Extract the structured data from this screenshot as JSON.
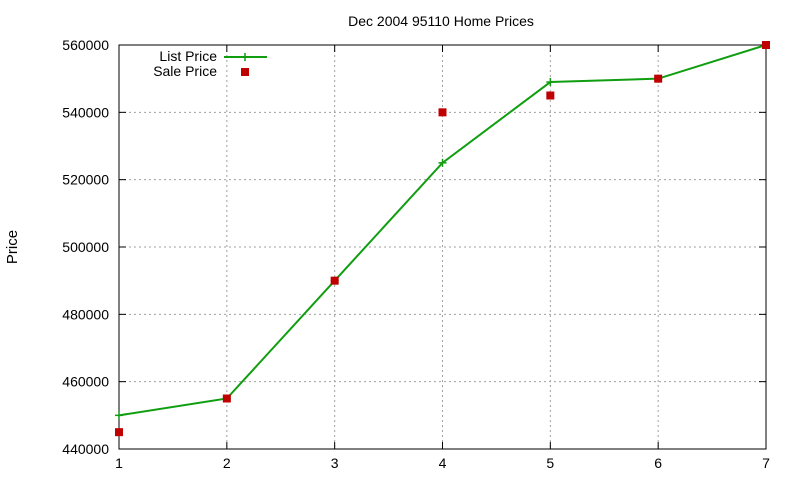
{
  "chart_data": {
    "type": "line",
    "title": "Dec 2004 95110 Home Prices",
    "xlabel": "",
    "ylabel": "Price",
    "x": [
      1,
      2,
      3,
      4,
      5,
      6,
      7
    ],
    "xlim": [
      1,
      7
    ],
    "ylim": [
      440000,
      560000
    ],
    "xticks": [
      1,
      2,
      3,
      4,
      5,
      6,
      7
    ],
    "yticks": [
      440000,
      460000,
      480000,
      500000,
      520000,
      540000,
      560000
    ],
    "grid": true,
    "legend_position": "top-left",
    "series": [
      {
        "name": "List Price",
        "style": "line+cross-markers",
        "color": "#109e10",
        "values": [
          450000,
          455000,
          490000,
          525000,
          549000,
          550000,
          560000
        ]
      },
      {
        "name": "Sale Price",
        "style": "square-markers",
        "color": "#c00000",
        "values": [
          445000,
          455000,
          490000,
          540000,
          545000,
          550000,
          560000
        ]
      }
    ]
  }
}
